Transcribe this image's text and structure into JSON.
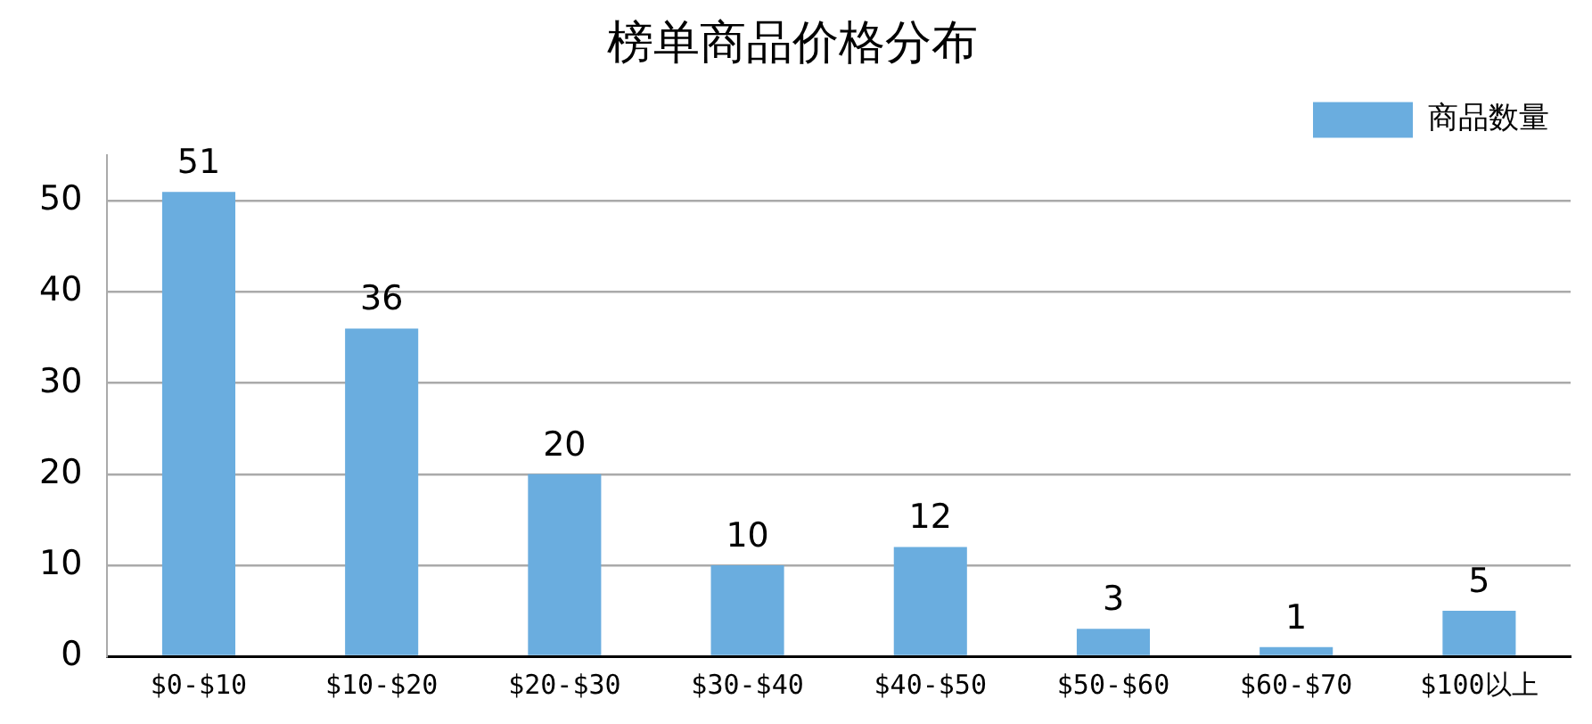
{
  "chart_data": {
    "type": "bar",
    "title": "榜单商品价格分布",
    "categories": [
      "$0-$10",
      "$10-$20",
      "$20-$30",
      "$30-$40",
      "$40-$50",
      "$50-$60",
      "$60-$70",
      "$100以上"
    ],
    "series": [
      {
        "name": "商品数量",
        "color": "#6aaddf",
        "values": [
          51,
          36,
          20,
          10,
          12,
          3,
          1,
          5
        ]
      }
    ],
    "ylim": [
      0,
      55
    ],
    "yticks": [
      0,
      10,
      20,
      30,
      40,
      50
    ],
    "grid": "y",
    "legend": "top right",
    "data_labels": true
  }
}
